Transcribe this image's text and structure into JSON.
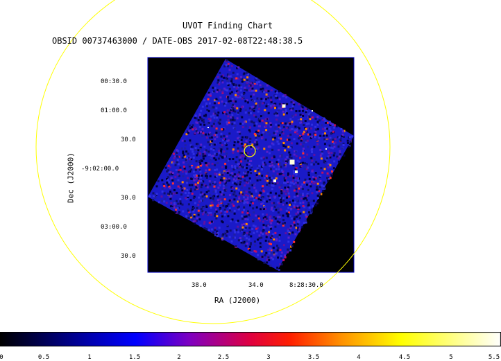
{
  "header": {
    "title": "UVOT Finding Chart",
    "subtitle": "OBSID 00737463000 / DATE-OBS 2017-02-08T22:48:38.5"
  },
  "axes": {
    "dec_label": "Dec (J2000)",
    "ra_label": "RA (J2000)",
    "dec_ticks": [
      "00:30.0",
      "01:00.0",
      "30.0",
      "-9:02:00.0",
      "30.0",
      "03:00.0",
      "30.0"
    ],
    "ra_ticks": [
      "38.0",
      "34.0",
      "8:28:30.0"
    ]
  },
  "colorbar": {
    "ticks": [
      "0",
      "0.5",
      "1",
      "1.5",
      "2",
      "2.5",
      "3",
      "3.5",
      "4",
      "4.5",
      "5",
      "5.5"
    ]
  },
  "colors": {
    "outer_circle": "#ffff00",
    "target_circle": "#ffff00",
    "frame": "#0000ff",
    "background": "#000000"
  }
}
